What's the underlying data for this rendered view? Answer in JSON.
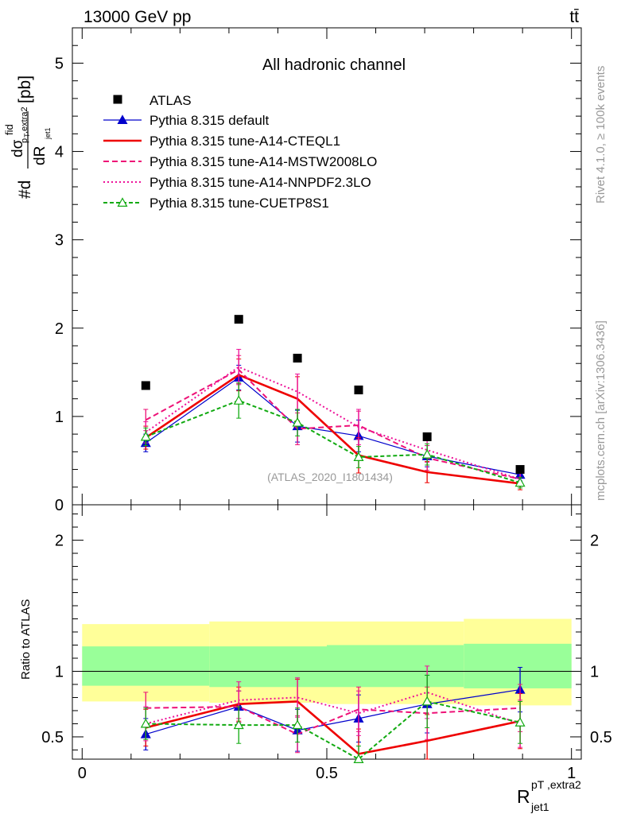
{
  "header": {
    "energy_label": "13000 GeV pp",
    "process_label": "tt̄"
  },
  "side_labels": {
    "rivet": "Rivet 4.1.0, ≥ 100k events",
    "mcplots": "mcplots.cern.ch [arXiv:1306.3436]"
  },
  "main_panel": {
    "title": "All hadronic channel",
    "ylabel_parts": {
      "hash_d": "#d",
      "sigma": "dσ",
      "fid": "fid",
      "dR": "dR",
      "sub": "p",
      "sub2": "T",
      "extra2": ",extra2",
      "jet1": "jet1",
      "unit": "[pb]"
    },
    "ylim": [
      0,
      5.4
    ],
    "yticks": [
      0,
      1,
      2,
      3,
      4,
      5
    ],
    "watermark": "(ATLAS_2020_I1801434)"
  },
  "ratio_panel": {
    "ylabel": "Ratio to ATLAS",
    "ylim": [
      0.33,
      2.27
    ],
    "yticks": [
      0.5,
      1,
      2
    ]
  },
  "xaxis": {
    "xlim": [
      -0.02,
      1.02
    ],
    "xticks": [
      0,
      0.5,
      1
    ],
    "tick_labels": [
      "0",
      "0.5",
      "1"
    ],
    "label_main": "R",
    "label_sup": "pT ,extra2",
    "label_sub": "jet1"
  },
  "chart_data": {
    "type": "line",
    "title": "All hadronic channel",
    "xlabel": "R_jet1^{pT,extra2}",
    "ylabel": "#d dσ^fid / dR [pb]",
    "bins": [
      [
        0,
        0.26
      ],
      [
        0.26,
        0.38
      ],
      [
        0.38,
        0.5
      ],
      [
        0.5,
        0.78
      ],
      [
        0.78,
        0.78
      ],
      [
        0.78,
        1.0
      ]
    ],
    "x": [
      0.13,
      0.32,
      0.44,
      0.565,
      0.705,
      0.895
    ],
    "band_edges": [
      0,
      0.26,
      0.5,
      0.78,
      1.0
    ],
    "band_yellow_lo": [
      0.77,
      0.76,
      0.75,
      0.74
    ],
    "band_yellow_hi": [
      1.36,
      1.38,
      1.38,
      1.4
    ],
    "band_green_lo": [
      0.89,
      0.88,
      0.88,
      0.87
    ],
    "band_green_hi": [
      1.19,
      1.19,
      1.2,
      1.21
    ],
    "data": {
      "name": "ATLAS",
      "color": "#000000",
      "values": [
        1.35,
        2.1,
        1.66,
        1.3,
        0.77,
        0.4
      ]
    },
    "series": [
      {
        "name": "Pythia 8.315 default",
        "color": "#0000cc",
        "dash": "none",
        "marker": "triangle-filled",
        "values": [
          0.7,
          1.44,
          0.89,
          0.78,
          0.55,
          0.34
        ],
        "errors": [
          0.1,
          0.14,
          0.18,
          0.18,
          0.12,
          0.07
        ],
        "ratio": [
          0.52,
          0.73,
          0.55,
          0.64,
          0.75,
          0.86
        ],
        "ratio_err": [
          0.12,
          0.12,
          0.16,
          0.18,
          0.22,
          0.17
        ]
      },
      {
        "name": "Pythia 8.315 tune-A14-CTEQL1",
        "color": "#ee0000",
        "dash": "none",
        "marker": "none",
        "values": [
          0.76,
          1.47,
          1.2,
          0.56,
          0.37,
          0.24
        ],
        "errors": [
          0.13,
          0.18,
          0.25,
          0.2,
          0.12,
          0.07
        ],
        "ratio": [
          0.57,
          0.75,
          0.77,
          0.37,
          0.47,
          0.62
        ],
        "ratio_err": [
          0.14,
          0.13,
          0.17,
          0.19,
          0.2,
          0.21
        ]
      },
      {
        "name": "Pythia 8.315 tune-A14-MSTW2008LO",
        "color": "#ee1177",
        "dash": "7,4",
        "marker": "none",
        "values": [
          0.96,
          1.53,
          0.86,
          0.9,
          0.53,
          0.29
        ],
        "errors": [
          0.12,
          0.16,
          0.18,
          0.16,
          0.14,
          0.07
        ],
        "ratio": [
          0.72,
          0.73,
          0.52,
          0.71,
          0.68,
          0.72
        ],
        "ratio_err": [
          0.12,
          0.12,
          0.14,
          0.17,
          0.2,
          0.18
        ]
      },
      {
        "name": "Pythia 8.315 tune-A14-NNPDF2.3LO",
        "color": "#ee1199",
        "dash": "2,3",
        "marker": "none",
        "values": [
          0.82,
          1.56,
          1.28,
          0.88,
          0.62,
          0.29
        ],
        "errors": [
          0.12,
          0.2,
          0.2,
          0.2,
          0.14,
          0.08
        ],
        "ratio": [
          0.6,
          0.78,
          0.8,
          0.68,
          0.84,
          0.6
        ],
        "ratio_err": [
          0.13,
          0.14,
          0.15,
          0.17,
          0.2,
          0.18
        ]
      },
      {
        "name": "Pythia 8.315 tune-CUETP8S1",
        "color": "#11aa11",
        "dash": "5,3",
        "marker": "triangle-open",
        "values": [
          0.77,
          1.18,
          0.93,
          0.54,
          0.57,
          0.25
        ],
        "errors": [
          0.1,
          0.2,
          0.15,
          0.12,
          0.12,
          0.06
        ],
        "ratio": [
          0.6,
          0.59,
          0.59,
          0.33,
          0.77,
          0.61
        ],
        "ratio_err": [
          0.12,
          0.14,
          0.13,
          0.1,
          0.2,
          0.16
        ]
      }
    ]
  }
}
